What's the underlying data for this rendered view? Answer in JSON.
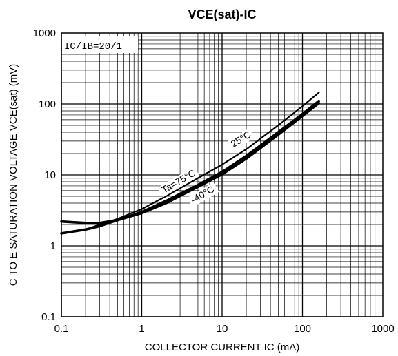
{
  "chart_data": {
    "type": "line",
    "title": "VCE(sat)-IC",
    "xlabel": "COLLECTOR CURRENT IC (mA)",
    "ylabel": "C TO E SATURATION VOLTAGE VCE(sat) (mV)",
    "xscale": "log",
    "yscale": "log",
    "xlim": [
      0.1,
      1000
    ],
    "ylim": [
      0.1,
      1000
    ],
    "grid": true,
    "x_tick_labels": [
      "0.1",
      "1",
      "10",
      "100",
      "1000"
    ],
    "y_tick_labels": [
      "0.1",
      "1",
      "10",
      "100",
      "1000"
    ],
    "condition": "IC/IB=20/1",
    "series": [
      {
        "name": "Ta=75°C",
        "x": [
          0.1,
          0.2,
          0.3,
          0.5,
          1,
          2,
          5,
          10,
          20,
          50,
          100,
          160
        ],
        "y": [
          2.2,
          2.1,
          2.1,
          2.3,
          3.0,
          4.3,
          7.2,
          11.0,
          18.5,
          40,
          72,
          110
        ]
      },
      {
        "name": "25°C",
        "x": [
          0.1,
          0.2,
          0.3,
          0.5,
          1,
          2,
          5,
          10,
          20,
          50,
          100,
          160
        ],
        "y": [
          1.5,
          1.7,
          2.0,
          2.4,
          3.3,
          5.0,
          9.0,
          14.0,
          23,
          50,
          93,
          145
        ]
      },
      {
        "name": "-40°C",
        "x": [
          0.1,
          0.2,
          0.3,
          0.5,
          1,
          2,
          5,
          10,
          20,
          50,
          100,
          160
        ],
        "y": [
          1.5,
          1.7,
          1.9,
          2.3,
          2.9,
          4.0,
          6.8,
          10.2,
          17,
          37,
          68,
          103
        ]
      }
    ],
    "annotations": [
      {
        "text": "Ta=75°C",
        "anchor_series": 0
      },
      {
        "text": "25°C",
        "anchor_series": 1
      },
      {
        "text": "-40°C",
        "anchor_series": 2
      }
    ]
  }
}
